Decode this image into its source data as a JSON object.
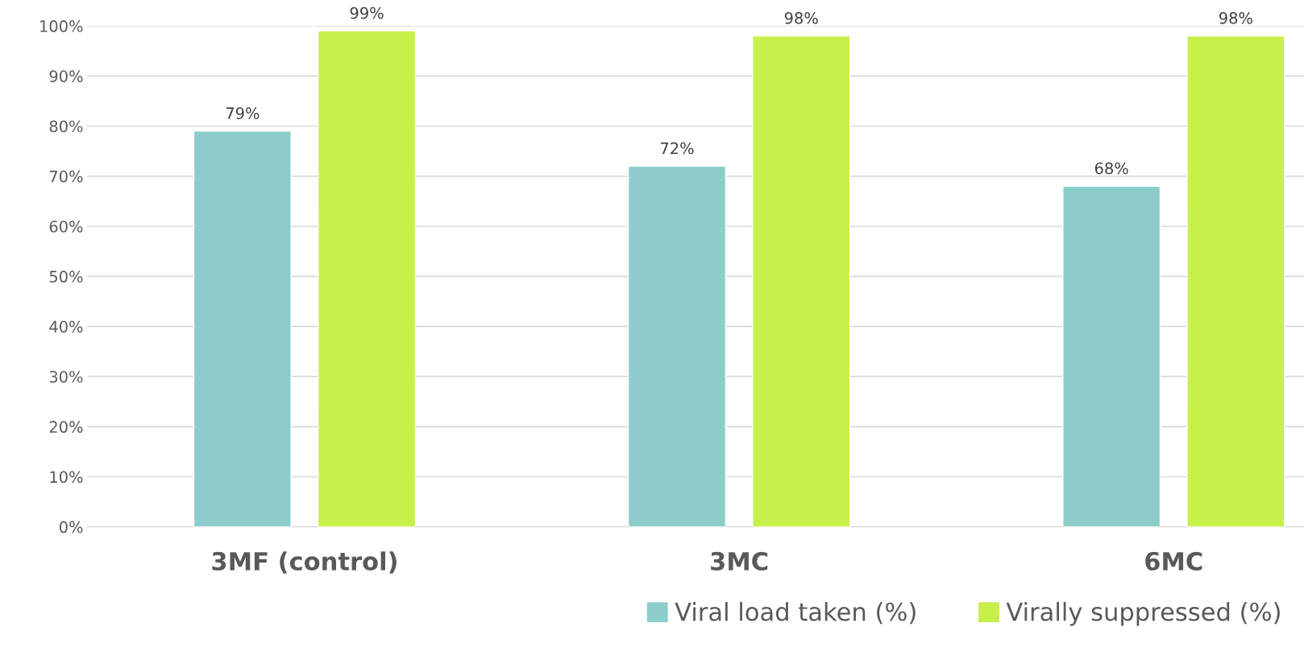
{
  "chart_data": {
    "type": "bar",
    "categories": [
      "3MF (control)",
      "3MC",
      "6MC"
    ],
    "series": [
      {
        "name": "Viral load taken (%)",
        "color": "#8ccdcc",
        "values": [
          79,
          72,
          68
        ]
      },
      {
        "name": "Virally suppressed (%)",
        "color": "#c8f04b",
        "values": [
          99,
          98,
          98
        ]
      }
    ],
    "value_labels": [
      [
        "79%",
        "72%",
        "68%"
      ],
      [
        "99%",
        "98%",
        "98%"
      ]
    ],
    "ylim": [
      0,
      100
    ],
    "yticks": [
      {
        "value": 0,
        "label": "0%"
      },
      {
        "value": 10,
        "label": "10%"
      },
      {
        "value": 20,
        "label": "20%"
      },
      {
        "value": 30,
        "label": "30%"
      },
      {
        "value": 40,
        "label": "40%"
      },
      {
        "value": 50,
        "label": "50%"
      },
      {
        "value": 60,
        "label": "60%"
      },
      {
        "value": 70,
        "label": "70%"
      },
      {
        "value": 80,
        "label": "80%"
      },
      {
        "value": 90,
        "label": "90%"
      },
      {
        "value": 100,
        "label": "100%"
      }
    ],
    "grid": "y",
    "legend": "bottom right"
  }
}
